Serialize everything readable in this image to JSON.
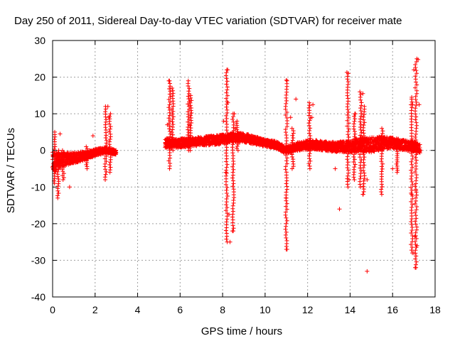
{
  "chart_data": {
    "type": "scatter",
    "title": "Day 250 of 2011, Sidereal Day-to-day VTEC variation (SDTVAR) for receiver mate",
    "xlabel": "GPS time / hours",
    "ylabel": "SDTVAR / TECUs",
    "xlim": [
      0,
      18
    ],
    "ylim": [
      -40,
      30
    ],
    "xticks": [
      0,
      2,
      4,
      6,
      8,
      10,
      12,
      14,
      16,
      18
    ],
    "yticks": [
      -40,
      -30,
      -20,
      -10,
      0,
      10,
      20,
      30
    ],
    "grid": true,
    "marker": "+",
    "color": "#ff0000",
    "dense_band": {
      "x": [
        0.0,
        0.2,
        0.5,
        1.0,
        1.5,
        2.0,
        2.5,
        3.0,
        5.3,
        6.0,
        7.0,
        8.0,
        8.5,
        9.0,
        10.0,
        10.5,
        11.0,
        11.5,
        12.0,
        12.5,
        13.0,
        13.5,
        14.0,
        14.5,
        15.0,
        15.5,
        16.0,
        16.5,
        17.0,
        17.3
      ],
      "center": [
        -3.5,
        -3.0,
        -2.5,
        -2.0,
        -1.5,
        -0.5,
        0.0,
        -0.5,
        2.0,
        2.0,
        2.5,
        3.0,
        3.5,
        3.5,
        2.0,
        1.5,
        0.0,
        1.0,
        1.5,
        1.5,
        1.0,
        1.0,
        1.0,
        1.5,
        1.5,
        2.0,
        2.0,
        1.5,
        1.0,
        0.5
      ],
      "halfwidth": [
        3.0,
        2.5,
        1.8,
        1.5,
        1.2,
        1.0,
        0.8,
        0.6,
        1.3,
        1.2,
        1.2,
        1.3,
        1.3,
        1.2,
        1.0,
        1.0,
        1.0,
        1.1,
        1.3,
        1.3,
        1.3,
        1.4,
        1.6,
        2.0,
        2.0,
        1.8,
        1.5,
        1.4,
        1.3,
        1.2
      ]
    },
    "spikes": [
      {
        "x": 0.1,
        "from": -9,
        "to": 5
      },
      {
        "x": 0.25,
        "from": -13,
        "to": 0
      },
      {
        "x": 0.5,
        "from": -8,
        "to": 0
      },
      {
        "x": 1.6,
        "from": -5,
        "to": 1
      },
      {
        "x": 2.5,
        "from": -8,
        "to": 12
      },
      {
        "x": 2.7,
        "from": -6,
        "to": 10
      },
      {
        "x": 5.5,
        "from": -5,
        "to": 19
      },
      {
        "x": 5.65,
        "from": 0,
        "to": 17
      },
      {
        "x": 6.4,
        "from": 0,
        "to": 19
      },
      {
        "x": 6.5,
        "from": 0,
        "to": 15
      },
      {
        "x": 8.2,
        "from": -25,
        "to": 22
      },
      {
        "x": 8.5,
        "from": -22,
        "to": 10
      },
      {
        "x": 8.7,
        "from": 0,
        "to": 8
      },
      {
        "x": 11.0,
        "from": -27,
        "to": 19
      },
      {
        "x": 11.3,
        "from": -5,
        "to": 6
      },
      {
        "x": 12.1,
        "from": -5,
        "to": 13
      },
      {
        "x": 13.9,
        "from": -10,
        "to": 21
      },
      {
        "x": 14.2,
        "from": -8,
        "to": 10
      },
      {
        "x": 14.5,
        "from": -10,
        "to": 16
      },
      {
        "x": 14.65,
        "from": -12,
        "to": 12
      },
      {
        "x": 15.5,
        "from": -12,
        "to": 6
      },
      {
        "x": 16.2,
        "from": -6,
        "to": 2
      },
      {
        "x": 16.9,
        "from": -28,
        "to": 14
      },
      {
        "x": 17.1,
        "from": -32,
        "to": 25
      }
    ],
    "outliers": [
      [
        0.35,
        4.5
      ],
      [
        0.8,
        -10
      ],
      [
        1.9,
        4
      ],
      [
        2.6,
        12
      ],
      [
        2.65,
        9
      ],
      [
        5.4,
        7
      ],
      [
        5.5,
        19
      ],
      [
        8.05,
        8
      ],
      [
        8.15,
        -6
      ],
      [
        8.2,
        22
      ],
      [
        8.25,
        13
      ],
      [
        8.3,
        -17.5
      ],
      [
        8.35,
        -25
      ],
      [
        8.5,
        -22
      ],
      [
        8.55,
        10
      ],
      [
        8.6,
        6
      ],
      [
        11.0,
        -13
      ],
      [
        11.0,
        -27
      ],
      [
        11.0,
        19.2
      ],
      [
        11.2,
        9
      ],
      [
        11.45,
        14
      ],
      [
        12.25,
        12.5
      ],
      [
        12.2,
        9
      ],
      [
        13.3,
        -5
      ],
      [
        13.5,
        -16
      ],
      [
        13.85,
        21.3
      ],
      [
        13.95,
        -8
      ],
      [
        14.25,
        10
      ],
      [
        14.6,
        15.5
      ],
      [
        14.8,
        -8
      ],
      [
        14.8,
        -33
      ],
      [
        14.6,
        -12
      ],
      [
        16.0,
        -5
      ],
      [
        16.9,
        14.5
      ],
      [
        16.95,
        12.5
      ],
      [
        17.0,
        22
      ],
      [
        17.05,
        -23.5
      ],
      [
        17.0,
        -28
      ],
      [
        17.1,
        -32
      ],
      [
        17.15,
        -26
      ],
      [
        17.2,
        24.8
      ],
      [
        17.25,
        12.5
      ],
      [
        16.9,
        -12
      ],
      [
        17.1,
        -11
      ],
      [
        17.3,
        0
      ]
    ]
  }
}
